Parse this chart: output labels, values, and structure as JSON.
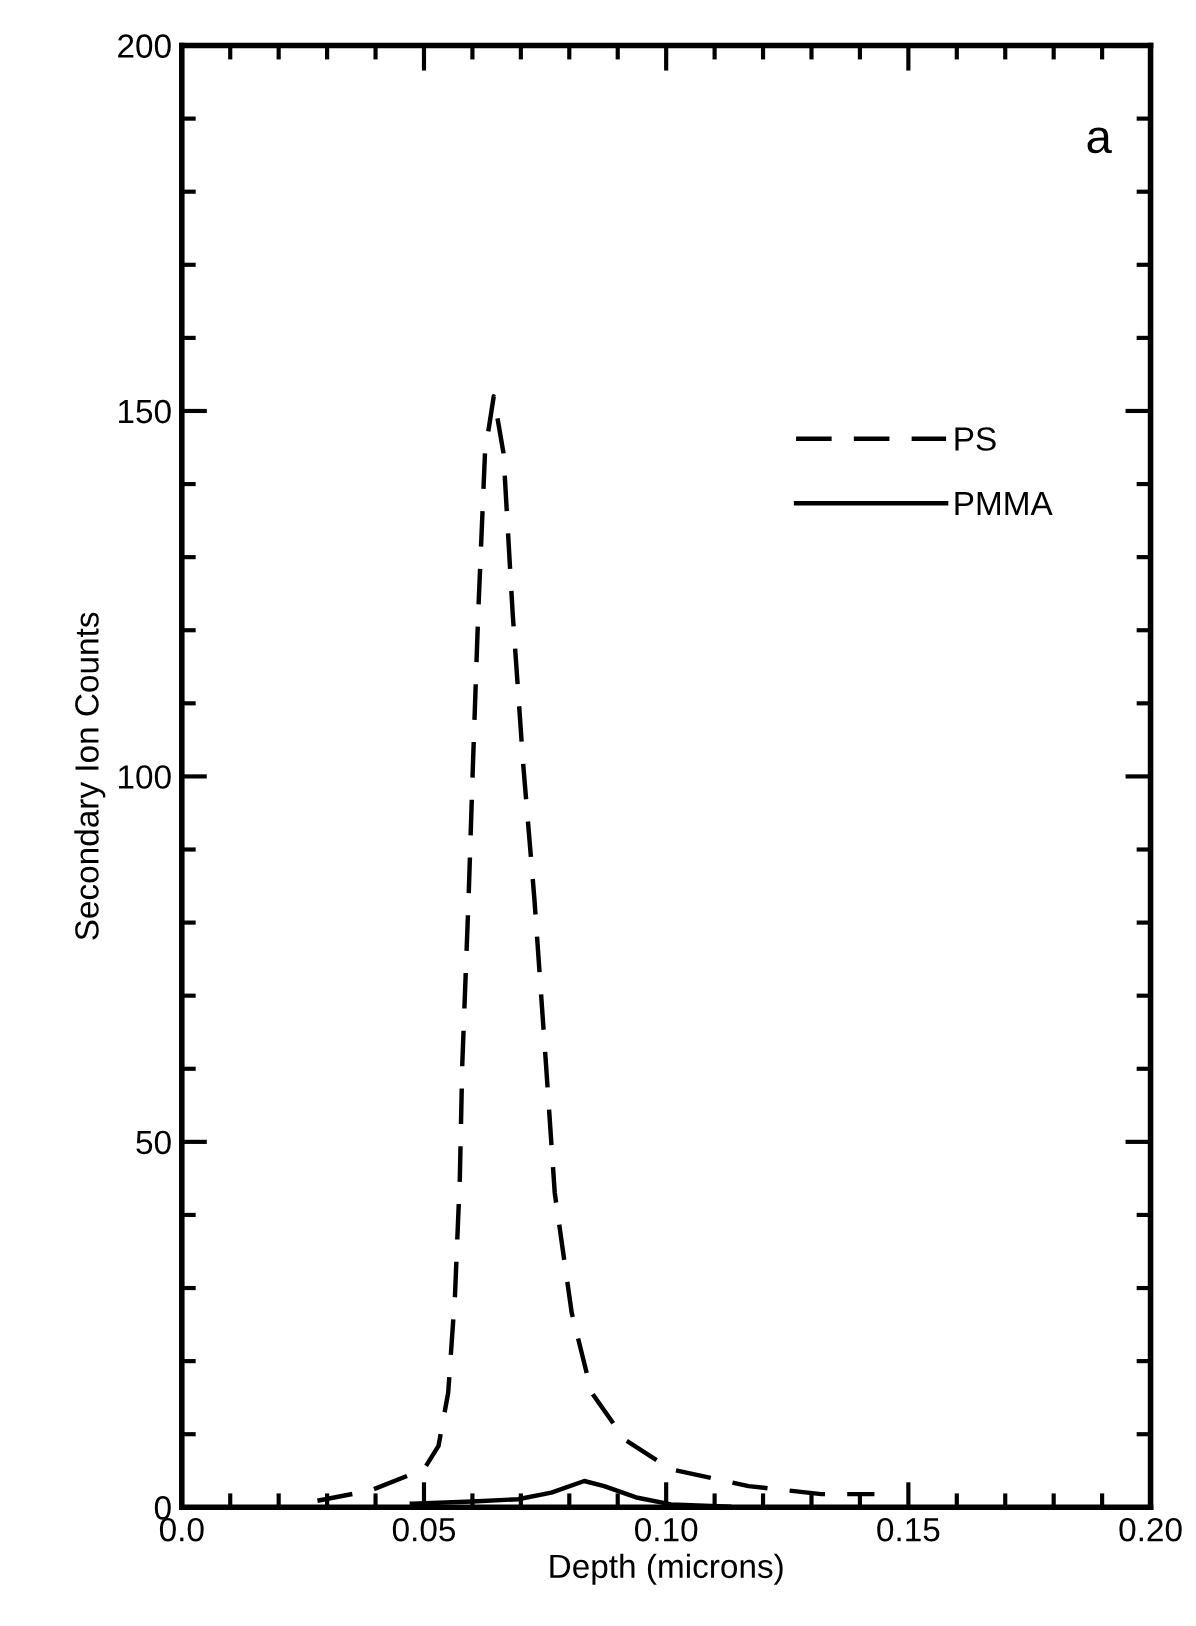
{
  "chart_data": {
    "type": "line",
    "xlabel": "Depth (microns)",
    "ylabel": "Secondary Ion Counts",
    "annotations": [
      "a"
    ],
    "xlim": [
      0.0,
      0.2
    ],
    "xticks": [
      {
        "value": 0.0,
        "label": "0.0"
      },
      0.05,
      {
        "value": 0.1,
        "label": "0.10"
      },
      0.15,
      {
        "value": 0.2,
        "label": "0.20"
      }
    ],
    "ylim": [
      0,
      200
    ],
    "yticks": [
      0,
      50,
      100,
      150,
      200
    ],
    "grid": false,
    "legend": "top right",
    "series": [
      {
        "name": "PS",
        "color": "#000000",
        "line_style": "dashed",
        "x": [
          0.028,
          0.039,
          0.05,
          0.053,
          0.055,
          0.0564,
          0.0574,
          0.0579,
          0.0592,
          0.0601,
          0.0612,
          0.0626,
          0.0644,
          0.0664,
          0.0683,
          0.0705,
          0.0728,
          0.0752,
          0.077,
          0.0805,
          0.0846,
          0.0914,
          0.101,
          0.117,
          0.132,
          0.143
        ],
        "values": [
          0.9,
          2.3,
          5.2,
          8.4,
          15.7,
          29,
          45,
          60.5,
          83.2,
          101.5,
          122.4,
          144.3,
          152,
          144.3,
          122.4,
          101.5,
          83.2,
          60.5,
          43,
          26.6,
          15.7,
          9.3,
          5.2,
          2.9,
          1.8,
          1.8
        ]
      },
      {
        "name": "PMMA",
        "color": "#000000",
        "line_style": "solid",
        "x": [
          0.0475,
          0.06,
          0.0694,
          0.0763,
          0.0831,
          0.0872,
          0.0941,
          0.101,
          0.113
        ],
        "values": [
          0.5,
          0.8,
          1.1,
          2.0,
          3.6,
          2.9,
          1.3,
          0.4,
          0.1
        ]
      }
    ]
  }
}
